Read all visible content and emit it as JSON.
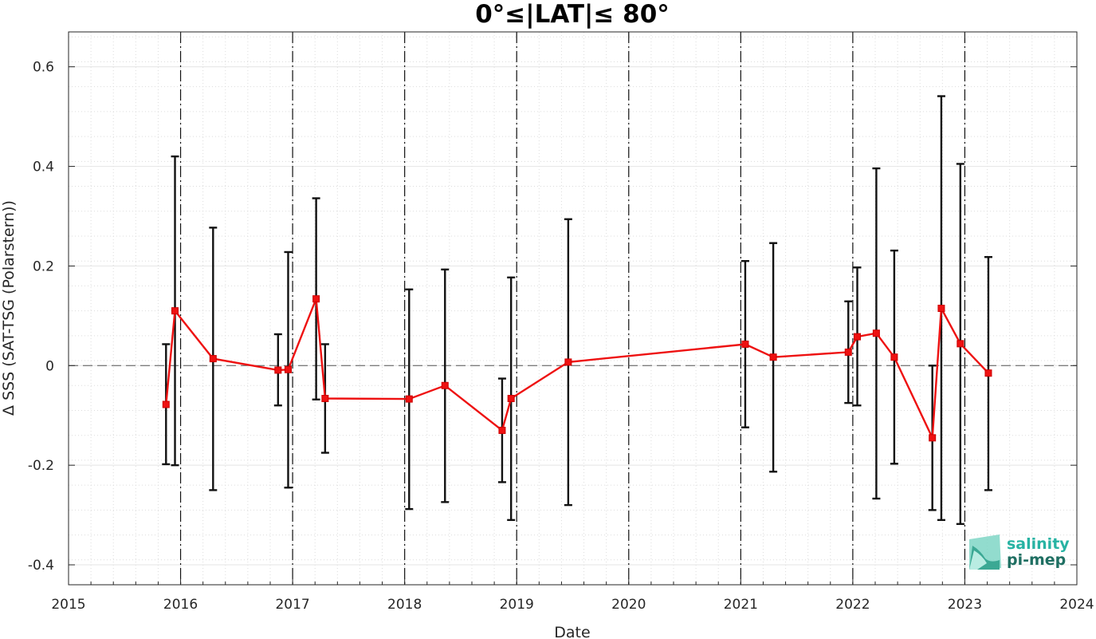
{
  "chart_data": {
    "type": "line",
    "title": "0°≤|LAT|≤ 80°",
    "xlabel": "Date",
    "ylabel": "Δ SSS (SAT-TSG (Polarstern))",
    "xlim": [
      2015,
      2024
    ],
    "ylim": [
      -0.44,
      0.67
    ],
    "x_ticks": [
      "2015",
      "2016",
      "2017",
      "2018",
      "2019",
      "2020",
      "2021",
      "2022",
      "2023",
      "2024"
    ],
    "y_ticks": [
      -0.4,
      -0.2,
      0,
      0.2,
      0.4,
      0.6
    ],
    "y_tick_labels": [
      "-0.4",
      "-0.2",
      "0",
      "0.2",
      "0.4",
      "0.6"
    ],
    "grid": true,
    "zero_line": 0,
    "year_boundaries": [
      2016,
      2017,
      2018,
      2019,
      2020,
      2021,
      2022,
      2023
    ],
    "series": [
      {
        "color": "#ee1111",
        "points": [
          {
            "x": 2015.87,
            "y": -0.078,
            "err_low": -0.198,
            "err_high": 0.043
          },
          {
            "x": 2015.95,
            "y": 0.11,
            "err_low": -0.2,
            "err_high": 0.42
          },
          {
            "x": 2016.29,
            "y": 0.014,
            "err_low": -0.25,
            "err_high": 0.277
          },
          {
            "x": 2016.87,
            "y": -0.009,
            "err_low": -0.08,
            "err_high": 0.063
          },
          {
            "x": 2016.96,
            "y": -0.008,
            "err_low": -0.245,
            "err_high": 0.228
          },
          {
            "x": 2017.21,
            "y": 0.134,
            "err_low": -0.068,
            "err_high": 0.336
          },
          {
            "x": 2017.29,
            "y": -0.066,
            "err_low": -0.175,
            "err_high": 0.043
          },
          {
            "x": 2018.04,
            "y": -0.067,
            "err_low": -0.288,
            "err_high": 0.153
          },
          {
            "x": 2018.36,
            "y": -0.04,
            "err_low": -0.274,
            "err_high": 0.193
          },
          {
            "x": 2018.87,
            "y": -0.13,
            "err_low": -0.234,
            "err_high": -0.026
          },
          {
            "x": 2018.95,
            "y": -0.066,
            "err_low": -0.31,
            "err_high": 0.177
          },
          {
            "x": 2019.46,
            "y": 0.007,
            "err_low": -0.28,
            "err_high": 0.294
          },
          {
            "x": 2021.04,
            "y": 0.043,
            "err_low": -0.124,
            "err_high": 0.21
          },
          {
            "x": 2021.29,
            "y": 0.017,
            "err_low": -0.213,
            "err_high": 0.246
          },
          {
            "x": 2021.96,
            "y": 0.027,
            "err_low": -0.075,
            "err_high": 0.129
          },
          {
            "x": 2022.04,
            "y": 0.058,
            "err_low": -0.08,
            "err_high": 0.197
          },
          {
            "x": 2022.21,
            "y": 0.065,
            "err_low": -0.267,
            "err_high": 0.396
          },
          {
            "x": 2022.37,
            "y": 0.017,
            "err_low": -0.197,
            "err_high": 0.231
          },
          {
            "x": 2022.71,
            "y": -0.145,
            "err_low": -0.29,
            "err_high": 0.0
          },
          {
            "x": 2022.79,
            "y": 0.115,
            "err_low": -0.31,
            "err_high": 0.541
          },
          {
            "x": 2022.96,
            "y": 0.044,
            "err_low": -0.318,
            "err_high": 0.405
          },
          {
            "x": 2023.21,
            "y": -0.015,
            "err_low": -0.25,
            "err_high": 0.218
          }
        ]
      }
    ]
  },
  "logo": {
    "line1": "salinity",
    "line2": "pi-mep",
    "color1": "#27b3a3",
    "color2": "#1f6f62",
    "icon": "salinity-wave-icon"
  }
}
